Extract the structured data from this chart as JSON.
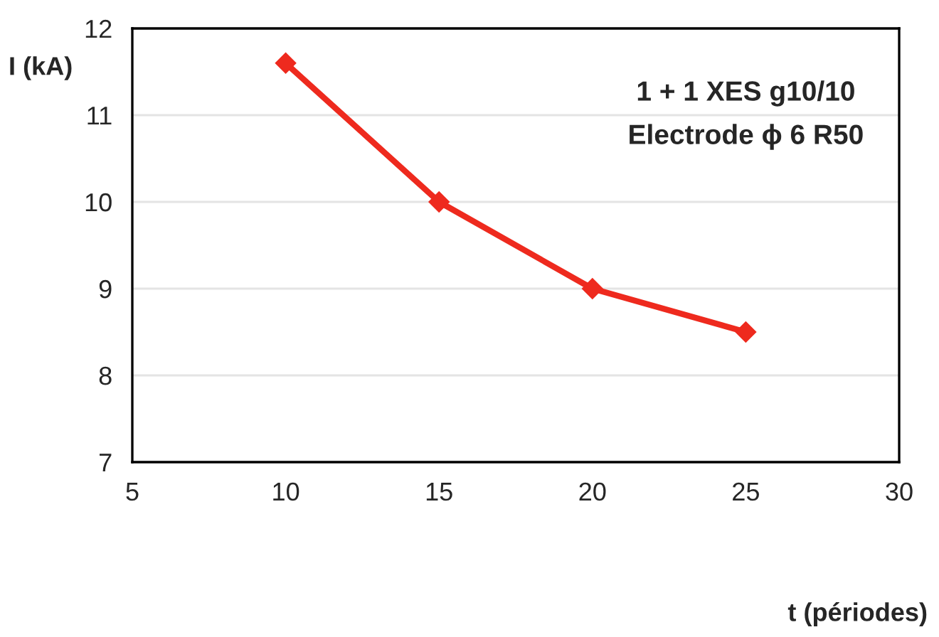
{
  "chart_data": {
    "type": "line",
    "xlabel": "t (périodes)",
    "ylabel": "I (kA)",
    "x": [
      10,
      15,
      20,
      25
    ],
    "series": [
      {
        "color": "#ee2a1e",
        "values": [
          11.6,
          10.0,
          9.0,
          8.5
        ]
      }
    ],
    "xlim": [
      5,
      30
    ],
    "xticks": [
      5,
      10,
      15,
      20,
      25,
      30
    ],
    "ylim": [
      7,
      12
    ],
    "yticks": [
      7,
      8,
      9,
      10,
      11,
      12
    ],
    "grid": "y",
    "marker": "diamond",
    "line_style": "solid",
    "legend": false,
    "annotations": [
      "1 + 1 XES g10/10",
      "Electrode ϕ 6 R50"
    ]
  }
}
